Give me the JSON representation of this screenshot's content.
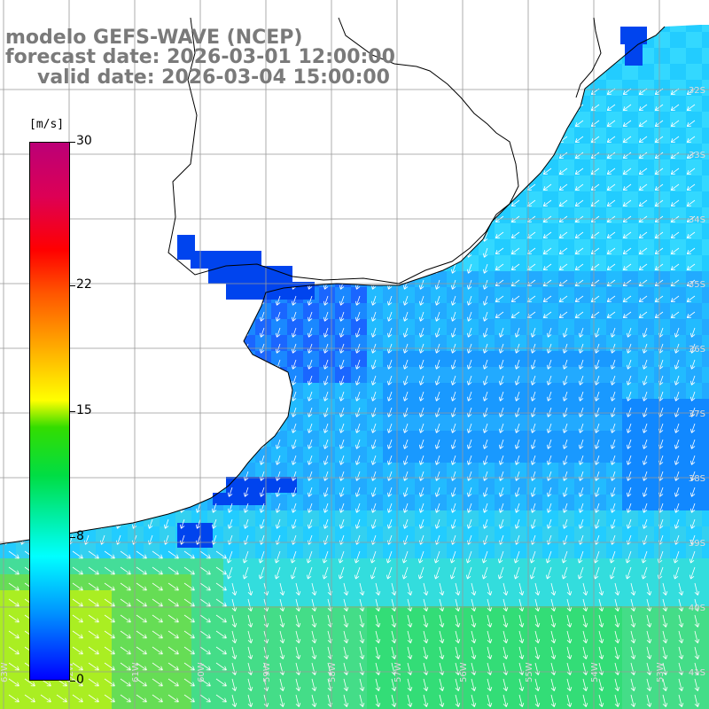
{
  "title": {
    "line1": "modelo GEFS-WAVE (NCEP)",
    "line2": "forecast date: 2026-03-01 12:00:00",
    "line3": "valid date: 2026-03-04 15:00:00"
  },
  "colorbar": {
    "unit": "[m/s]",
    "ticks": [
      "30",
      "22",
      "15",
      "8",
      "0"
    ],
    "tick_values": [
      30,
      22,
      15,
      8,
      0
    ],
    "range": [
      0,
      30
    ]
  },
  "map": {
    "lat_labels": [
      "32S",
      "33S",
      "34S",
      "35S",
      "36S",
      "37S",
      "38S",
      "39S",
      "40S",
      "41S"
    ],
    "lat_values": [
      -32,
      -33,
      -34,
      -35,
      -36,
      -37,
      -38,
      -39,
      -40,
      -41
    ],
    "lon_labels": [
      "63W",
      "62W",
      "61W",
      "60W",
      "59W",
      "58W",
      "57W",
      "56W",
      "55W",
      "54W",
      "53W"
    ],
    "lon_values": [
      -63,
      -62,
      -61,
      -60,
      -59,
      -58,
      -57,
      -56,
      -55,
      -54,
      -53
    ],
    "land_color": "#ffffff",
    "coast_color": "#000000",
    "grid_color": "#999999"
  }
}
